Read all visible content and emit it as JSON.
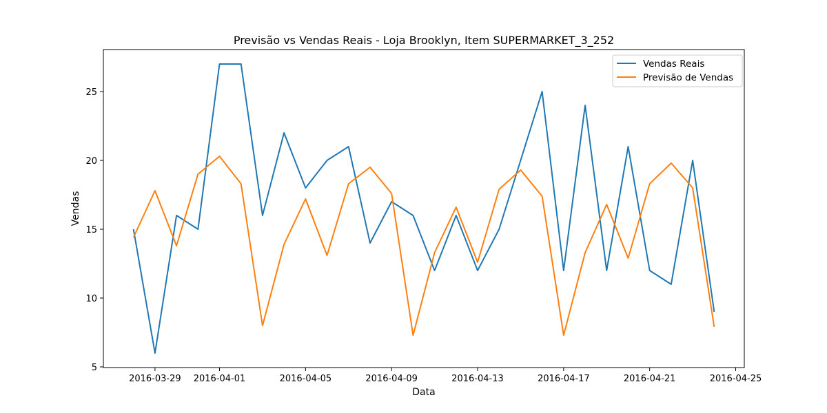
{
  "chart_data": {
    "type": "line",
    "title": "Previsão vs Vendas Reais - Loja Brooklyn, Item SUPERMARKET_3_252",
    "xlabel": "Data",
    "ylabel": "Vendas",
    "x": [
      "2016-03-28",
      "2016-03-29",
      "2016-03-30",
      "2016-03-31",
      "2016-04-01",
      "2016-04-02",
      "2016-04-03",
      "2016-04-04",
      "2016-04-05",
      "2016-04-06",
      "2016-04-07",
      "2016-04-08",
      "2016-04-09",
      "2016-04-10",
      "2016-04-11",
      "2016-04-12",
      "2016-04-13",
      "2016-04-14",
      "2016-04-15",
      "2016-04-16",
      "2016-04-17",
      "2016-04-18",
      "2016-04-19",
      "2016-04-20",
      "2016-04-21",
      "2016-04-22",
      "2016-04-23",
      "2016-04-24"
    ],
    "series": [
      {
        "name": "Vendas Reais",
        "color": "#1f77b4",
        "values": [
          15,
          6,
          16,
          15,
          27,
          27,
          16,
          22,
          18,
          20,
          21,
          14,
          17,
          16,
          12,
          16,
          12,
          15,
          20,
          25,
          12,
          24,
          12,
          21,
          12,
          11,
          20,
          9
        ]
      },
      {
        "name": "Previsão de Vendas",
        "color": "#ff7f0e",
        "values": [
          14.4,
          17.8,
          13.8,
          19.0,
          20.3,
          18.3,
          8.0,
          13.9,
          17.2,
          13.1,
          18.3,
          19.5,
          17.6,
          7.3,
          13.3,
          16.6,
          12.6,
          17.9,
          19.3,
          17.4,
          7.3,
          13.3,
          16.8,
          12.9,
          18.3,
          19.8,
          18.0,
          7.9
        ]
      }
    ],
    "xticks": [
      "2016-03-29",
      "2016-04-01",
      "2016-04-05",
      "2016-04-09",
      "2016-04-13",
      "2016-04-17",
      "2016-04-21",
      "2016-04-25"
    ],
    "yticks": [
      5,
      10,
      15,
      20,
      25
    ],
    "xlim": [
      "2016-03-26.6",
      "2016-04-25.4"
    ],
    "ylim": [
      4.95,
      28.05
    ],
    "grid": false,
    "legend_position": "top-right"
  }
}
